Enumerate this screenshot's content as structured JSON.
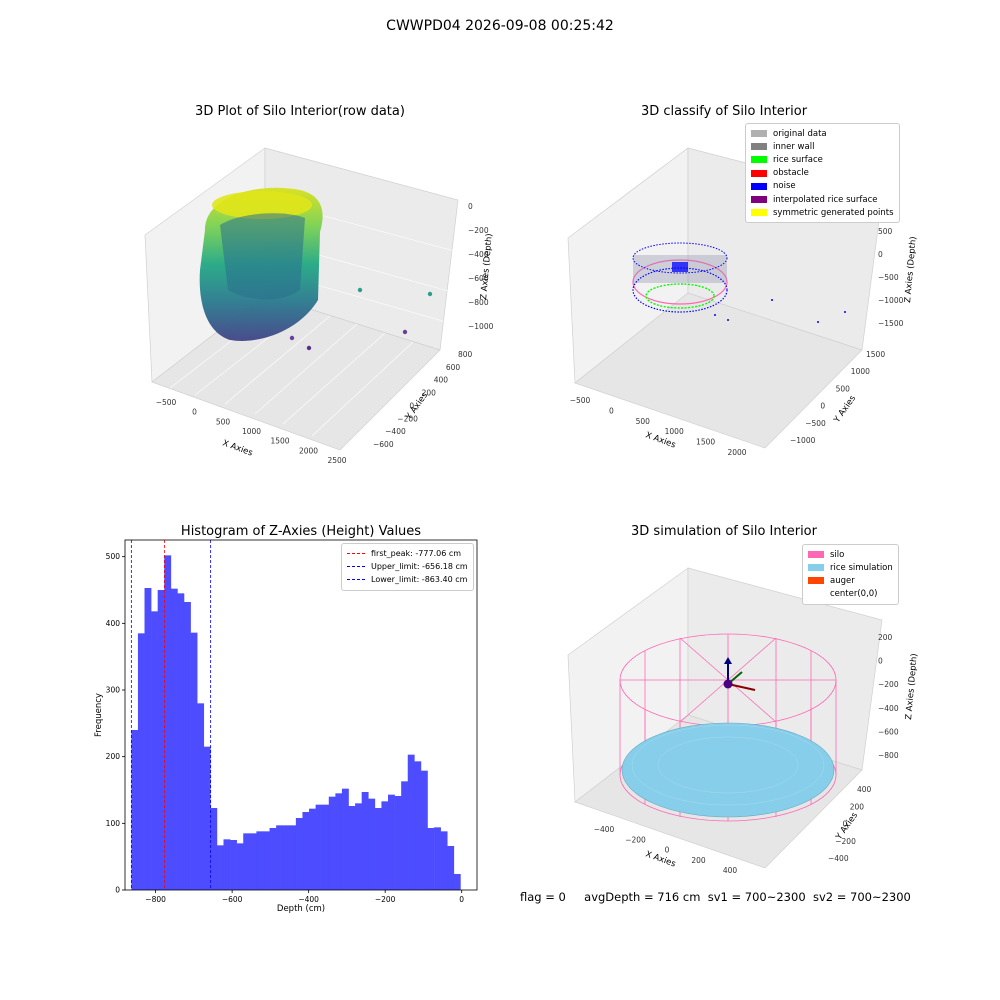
{
  "figure": {
    "title": "CWWPD04 2026-09-08 00:25:42",
    "status": {
      "flag": "flag = 0",
      "avg_depth": "avgDepth = 716 cm",
      "sv1": "sv1 = 700~2300",
      "sv2": "sv2 = 700~2300"
    }
  },
  "colors": {
    "original_data": "#b0b0b0",
    "inner_wall": "#808080",
    "rice_surface": "#00ff00",
    "obstacle": "#ff0000",
    "noise": "#0000ff",
    "interpolated_rice_surface": "#800080",
    "symmetric_generated_points": "#ffff00",
    "silo": "#ff69b4",
    "rice_simulation": "#87ceeb",
    "auger": "#ff4500",
    "histogram_bar": "#4d4dff"
  },
  "chart_data": [
    {
      "type": "scatter",
      "projection": "3d",
      "title": "3D Plot of Silo Interior(row data)",
      "xlabel": "X Axies",
      "ylabel": "Y Axies",
      "zlabel": "Z Axies (Depth)",
      "x_ticks": [
        "−500",
        "0",
        "500",
        "1000",
        "1500",
        "2000",
        "2500"
      ],
      "y_ticks": [
        "−600",
        "−400",
        "−200",
        "0",
        "200",
        "400",
        "600",
        "800"
      ],
      "z_ticks": [
        "−1000",
        "−800",
        "−600",
        "−400",
        "−200",
        "0"
      ],
      "colormap": "viridis",
      "outlier_points": [
        {
          "x": 1500,
          "y": 200,
          "z": -820
        },
        {
          "x": 2300,
          "y": 400,
          "z": -780
        },
        {
          "x": 2200,
          "y": -200,
          "z": -1000
        },
        {
          "x": 1200,
          "y": -300,
          "z": -1050
        },
        {
          "x": 1500,
          "y": -500,
          "z": -1100
        }
      ]
    },
    {
      "type": "scatter",
      "projection": "3d",
      "title": "3D classify of Silo Interior",
      "xlabel": "X Axies",
      "ylabel": "Y Axies",
      "zlabel": "Z Axies (Depth)",
      "x_ticks": [
        "−500",
        "0",
        "500",
        "1000",
        "1500",
        "2000"
      ],
      "y_ticks": [
        "−1000",
        "−500",
        "0",
        "500",
        "1000",
        "1500"
      ],
      "z_ticks": [
        "−1500",
        "−1000",
        "−500",
        "0",
        "500",
        "1000"
      ],
      "legend_location": "upper right",
      "legend": [
        {
          "label": "original data",
          "color_key": "original_data"
        },
        {
          "label": "inner wall",
          "color_key": "inner_wall"
        },
        {
          "label": "rice surface",
          "color_key": "rice_surface"
        },
        {
          "label": "obstacle",
          "color_key": "obstacle"
        },
        {
          "label": "noise",
          "color_key": "noise"
        },
        {
          "label": "interpolated rice surface",
          "color_key": "interpolated_rice_surface"
        },
        {
          "label": "symmetric generated points",
          "color_key": "symmetric_generated_points"
        }
      ]
    },
    {
      "type": "bar",
      "subtype": "histogram",
      "title": "Histogram of Z-Axies (Height) Values",
      "xlabel": "Depth (cm)",
      "ylabel": "Frequency",
      "xlim": [
        -880,
        40
      ],
      "ylim": [
        0,
        525
      ],
      "x_ticks": [
        -800,
        -600,
        -400,
        -200,
        0
      ],
      "x_tick_labels": [
        "−800",
        "−600",
        "−400",
        "−200",
        "0"
      ],
      "y_ticks": [
        0,
        100,
        200,
        300,
        400,
        500
      ],
      "y_tick_labels": [
        "0",
        "100",
        "200",
        "300",
        "400",
        "500"
      ],
      "bin_start": -863.4,
      "bin_width": 17.2,
      "values": [
        240,
        385,
        453,
        418,
        450,
        502,
        452,
        445,
        432,
        386,
        280,
        215,
        123,
        67,
        76,
        75,
        70,
        85,
        85,
        88,
        88,
        93,
        97,
        97,
        97,
        108,
        117,
        122,
        128,
        128,
        140,
        145,
        152,
        126,
        130,
        147,
        137,
        123,
        133,
        143,
        141,
        163,
        203,
        193,
        179,
        93,
        94,
        88,
        66,
        24
      ],
      "vlines": [
        {
          "x": -777.06,
          "label": "first_peak: -777.06 cm",
          "color": "#ff0000"
        },
        {
          "x": -656.18,
          "label": "Upper_limit: -656.18 cm",
          "color": "#0000ff"
        },
        {
          "x": -863.4,
          "label": "Lower_limit: -863.40 cm",
          "color": "#0000ff"
        }
      ],
      "legend_location": "upper right"
    },
    {
      "type": "scatter",
      "projection": "3d",
      "title": "3D simulation of Silo Interior",
      "xlabel": "X Axies",
      "ylabel": "Y Axies",
      "zlabel": "Z Axies (Depth)",
      "x_ticks": [
        "−400",
        "−200",
        "0",
        "200",
        "400"
      ],
      "y_ticks": [
        "−400",
        "−200",
        "0",
        "200",
        "400"
      ],
      "z_ticks": [
        "−800",
        "−600",
        "−400",
        "−200",
        "0",
        "200"
      ],
      "legend_location": "upper right",
      "legend": [
        {
          "label": "silo",
          "color_key": "silo",
          "marker": "patch"
        },
        {
          "label": "rice simulation",
          "color_key": "rice_simulation",
          "marker": "patch"
        },
        {
          "label": "auger",
          "color_key": "auger",
          "marker": "patch"
        },
        {
          "label": "center(0,0)",
          "color_key": "",
          "marker": "none"
        }
      ]
    }
  ]
}
